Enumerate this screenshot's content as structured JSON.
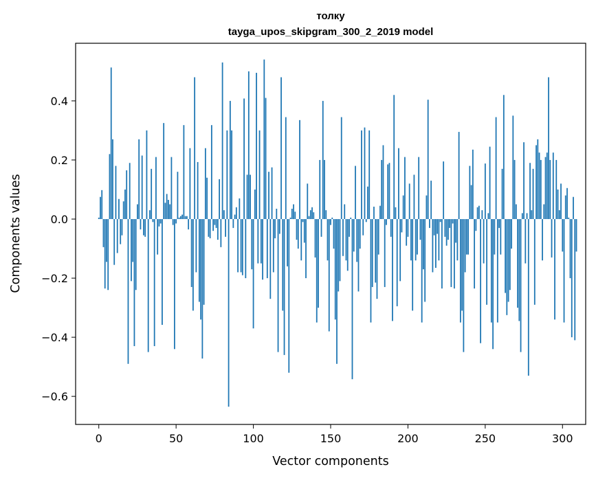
{
  "chart_data": {
    "type": "bar",
    "title": "толку",
    "subtitle": "tayga_upos_skipgram_300_2_2019 model",
    "xlabel": "Vector components",
    "ylabel": "Components values",
    "xlim": [
      -15,
      315
    ],
    "ylim": [
      -0.695,
      0.595
    ],
    "xticks": [
      0,
      50,
      100,
      150,
      200,
      250,
      300
    ],
    "xtick_labels": [
      "0",
      "50",
      "100",
      "150",
      "200",
      "250",
      "300"
    ],
    "yticks": [
      -0.6,
      -0.4,
      -0.2,
      0.0,
      0.2,
      0.4
    ],
    "ytick_labels": [
      "−0.6",
      "−0.4",
      "−0.2",
      "0.0",
      "0.2",
      "0.4"
    ],
    "grid": false,
    "bar_color": "#1f77b4",
    "x_start": 0,
    "values": [
      0.005,
      0.075,
      0.098,
      -0.095,
      -0.235,
      -0.145,
      -0.24,
      0.22,
      0.513,
      0.27,
      -0.155,
      0.18,
      -0.115,
      0.068,
      -0.085,
      -0.055,
      0.06,
      0.1,
      0.165,
      -0.49,
      0.19,
      -0.21,
      -0.145,
      -0.43,
      -0.24,
      0.05,
      0.27,
      -0.035,
      0.215,
      -0.055,
      -0.06,
      0.3,
      -0.45,
      0.03,
      0.17,
      -0.01,
      -0.43,
      0.21,
      -0.12,
      -0.025,
      -0.015,
      -0.358,
      0.325,
      0.055,
      0.085,
      0.065,
      0.05,
      0.21,
      -0.02,
      -0.44,
      -0.015,
      0.16,
      0.005,
      0.01,
      0.015,
      0.318,
      0.01,
      0.01,
      -0.035,
      0.24,
      -0.23,
      -0.31,
      0.48,
      -0.18,
      0.193,
      -0.28,
      -0.34,
      -0.472,
      -0.29,
      0.24,
      0.14,
      -0.06,
      -0.065,
      0.318,
      -0.04,
      -0.02,
      -0.03,
      -0.07,
      0.135,
      -0.095,
      0.53,
      0.03,
      -0.06,
      0.3,
      -0.635,
      0.4,
      0.3,
      -0.03,
      0.015,
      0.04,
      -0.18,
      0.07,
      -0.18,
      -0.19,
      0.408,
      -0.2,
      0.15,
      0.5,
      0.15,
      -0.17,
      -0.37,
      0.1,
      0.495,
      -0.15,
      0.3,
      -0.15,
      -0.205,
      0.54,
      0.41,
      -0.2,
      0.16,
      -0.27,
      0.175,
      -0.18,
      -0.065,
      0.035,
      -0.45,
      -0.05,
      0.48,
      -0.31,
      -0.46,
      0.345,
      -0.16,
      -0.52,
      0.005,
      0.035,
      0.05,
      0.025,
      -0.07,
      -0.1,
      0.335,
      -0.14,
      -0.01,
      -0.08,
      -0.2,
      0.12,
      0.01,
      0.03,
      0.04,
      0.023,
      -0.13,
      -0.35,
      -0.3,
      0.2,
      -0.06,
      0.4,
      0.2,
      0.03,
      -0.14,
      -0.38,
      -0.02,
      0.005,
      -0.1,
      -0.34,
      -0.49,
      -0.245,
      -0.21,
      0.345,
      -0.125,
      0.05,
      -0.14,
      -0.175,
      -0.06,
      0.005,
      -0.542,
      -0.11,
      0.18,
      -0.145,
      -0.245,
      -0.1,
      0.3,
      -0.055,
      0.31,
      -0.01,
      0.11,
      0.3,
      -0.35,
      -0.23,
      0.042,
      -0.215,
      -0.27,
      -0.12,
      0.045,
      0.2,
      0.25,
      -0.23,
      -0.02,
      0.185,
      0.19,
      -0.06,
      -0.345,
      0.42,
      0.04,
      -0.295,
      0.24,
      -0.21,
      -0.045,
      0.08,
      0.21,
      -0.09,
      -0.06,
      0.12,
      -0.14,
      -0.31,
      0.15,
      -0.14,
      -0.12,
      0.21,
      -0.07,
      -0.35,
      -0.17,
      -0.28,
      0.08,
      0.404,
      -0.03,
      0.13,
      -0.18,
      -0.055,
      -0.165,
      -0.05,
      -0.14,
      -0.01,
      -0.235,
      0.195,
      -0.06,
      -0.09,
      -0.07,
      -0.03,
      -0.23,
      -0.015,
      -0.235,
      -0.08,
      -0.14,
      0.295,
      -0.35,
      -0.31,
      -0.45,
      -0.18,
      -0.12,
      -0.12,
      0.18,
      0.115,
      0.235,
      -0.235,
      -0.04,
      0.04,
      0.045,
      -0.42,
      0.03,
      -0.15,
      0.188,
      -0.29,
      0.02,
      0.245,
      -0.35,
      -0.44,
      -0.12,
      0.345,
      -0.35,
      -0.03,
      -0.12,
      0.17,
      0.42,
      -0.25,
      -0.325,
      -0.28,
      -0.24,
      -0.1,
      0.35,
      0.2,
      0.05,
      -0.3,
      -0.345,
      -0.45,
      0.02,
      0.26,
      -0.15,
      0.02,
      -0.53,
      0.19,
      0.03,
      0.17,
      -0.29,
      0.25,
      0.27,
      0.225,
      0.2,
      -0.14,
      0.05,
      0.21,
      0.225,
      0.48,
      0.2,
      -0.13,
      0.225,
      -0.34,
      0.2,
      0.1,
      0.03,
      0.12,
      -0.11,
      -0.35,
      0.08,
      0.105,
      0.005,
      -0.2,
      -0.4,
      0.075,
      -0.41,
      -0.11
    ]
  }
}
